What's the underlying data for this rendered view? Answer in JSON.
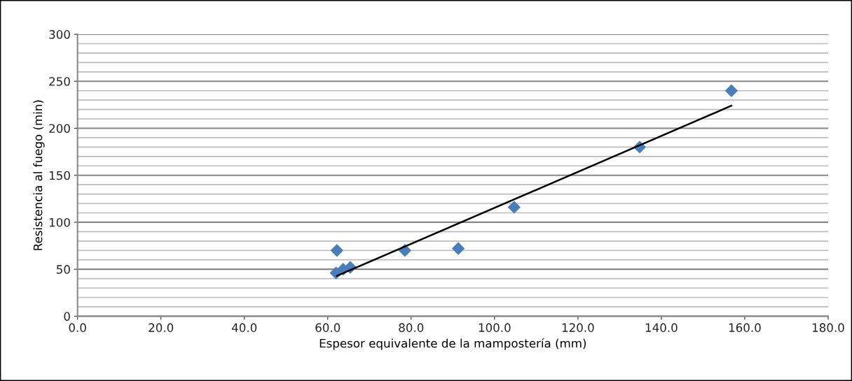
{
  "chart_data": {
    "type": "scatter",
    "xlabel": "Espesor equivalente de la mampostería (mm)",
    "ylabel": "Resistencia al fuego (min)",
    "xlim": [
      0,
      180
    ],
    "ylim": [
      0,
      300
    ],
    "xticks": [
      {
        "value": 0,
        "label": "0.0"
      },
      {
        "value": 20,
        "label": "20.0"
      },
      {
        "value": 40,
        "label": "40.0"
      },
      {
        "value": 60,
        "label": "60.0"
      },
      {
        "value": 80,
        "label": "80.0"
      },
      {
        "value": 100,
        "label": "100.0"
      },
      {
        "value": 120,
        "label": "120.0"
      },
      {
        "value": 140,
        "label": "140.0"
      },
      {
        "value": 160,
        "label": "160.0"
      },
      {
        "value": 180,
        "label": "180.0"
      }
    ],
    "yticks": [
      0,
      {
        "value": 10,
        "label": null
      },
      {
        "value": 20,
        "label": null
      },
      {
        "value": 30,
        "label": null
      },
      {
        "value": 40,
        "label": null
      },
      50,
      {
        "value": 60,
        "label": null
      },
      {
        "value": 70,
        "label": null
      },
      {
        "value": 80,
        "label": null
      },
      {
        "value": 90,
        "label": null
      },
      100,
      {
        "value": 110,
        "label": null
      },
      {
        "value": 120,
        "label": null
      },
      {
        "value": 130,
        "label": null
      },
      {
        "value": 140,
        "label": null
      },
      150,
      {
        "value": 160,
        "label": null
      },
      {
        "value": 170,
        "label": null
      },
      {
        "value": 180,
        "label": null
      },
      {
        "value": 190,
        "label": null
      },
      200,
      {
        "value": 210,
        "label": null
      },
      {
        "value": 220,
        "label": null
      },
      {
        "value": 230,
        "label": null
      },
      {
        "value": 240,
        "label": null
      },
      250,
      {
        "value": 260,
        "label": null
      },
      {
        "value": 270,
        "label": null
      },
      {
        "value": 280,
        "label": null
      },
      {
        "value": 290,
        "label": null
      },
      300
    ],
    "grid": "y",
    "legend": false,
    "series": [
      {
        "marker": "diamond",
        "color": "#4a7ebb",
        "x": [
          62.0,
          63.7,
          65.4,
          62.2,
          78.5,
          91.3,
          104.7,
          134.8,
          156.8
        ],
        "values": [
          46,
          50,
          52,
          70,
          70,
          72,
          116,
          180,
          240
        ]
      },
      {
        "type": "line",
        "marker": "none",
        "line_style": "solid",
        "color": "#000000",
        "x": [
          62.2,
          156.8
        ],
        "values": [
          43,
          224
        ]
      }
    ]
  }
}
